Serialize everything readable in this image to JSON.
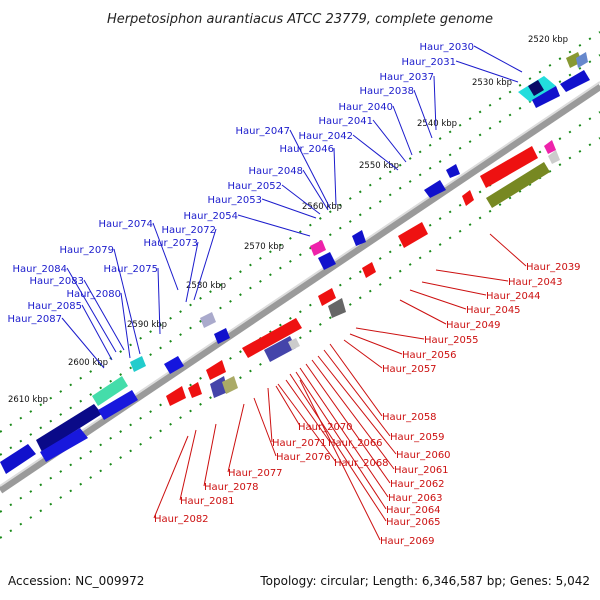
{
  "title": "Herpetosiphon aurantiacus ATCC 23779, complete genome",
  "footer": {
    "accession": "Accession: NC_009972",
    "summary": "Topology: circular; Length: 6,346,587 bp; Genes: 5,042"
  },
  "colors": {
    "forward": "#1010dd",
    "reverse": "#ee1111",
    "backbone": "#888888",
    "tick": "#1a8a1a",
    "label_forward": "#1c1ccc",
    "label_reverse": "#cc1010"
  },
  "ruler": [
    "2520 kbp",
    "2530 kbp",
    "2540 kbp",
    "2550 kbp",
    "2560 kbp",
    "2570 kbp",
    "2580 kbp",
    "2590 kbp",
    "2600 kbp",
    "2610 kbp"
  ],
  "top_genes": [
    "Haur_2030",
    "Haur_2031",
    "Haur_2037",
    "Haur_2038",
    "Haur_2040",
    "Haur_2041",
    "Haur_2042",
    "Haur_2046",
    "Haur_2047",
    "Haur_2048",
    "Haur_2052",
    "Haur_2053",
    "Haur_2054",
    "Haur_2072",
    "Haur_2073",
    "Haur_2074",
    "Haur_2075",
    "Haur_2079",
    "Haur_2080",
    "Haur_2083",
    "Haur_2084",
    "Haur_2085",
    "Haur_2087"
  ],
  "bottom_genes": [
    "Haur_2039",
    "Haur_2043",
    "Haur_2044",
    "Haur_2045",
    "Haur_2049",
    "Haur_2055",
    "Haur_2056",
    "Haur_2057",
    "Haur_2058",
    "Haur_2059",
    "Haur_2060",
    "Haur_2061",
    "Haur_2062",
    "Haur_2063",
    "Haur_2064",
    "Haur_2065",
    "Haur_2066",
    "Haur_2068",
    "Haur_2069",
    "Haur_2070",
    "Haur_2071",
    "Haur_2076",
    "Haur_2077",
    "Haur_2078",
    "Haur_2081",
    "Haur_2082"
  ]
}
